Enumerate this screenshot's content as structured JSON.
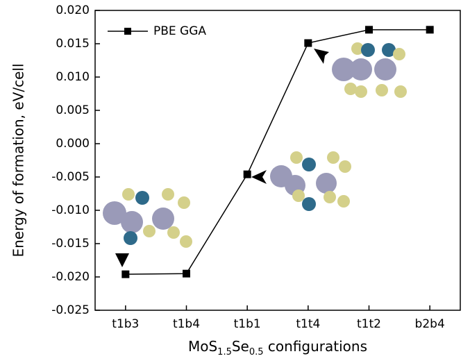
{
  "chart_data": {
    "type": "line",
    "y_label": "Energy of formation, eV/cell",
    "x_label_parts": [
      "MoS",
      "1.5",
      "Se",
      "0.5",
      " configurations"
    ],
    "categories": [
      "t1b3",
      "t1b4",
      "t1b1",
      "t1t4",
      "t1t2",
      "b2b4"
    ],
    "series": [
      {
        "name": "PBE GGA",
        "color": "#000000",
        "values": [
          -0.0196,
          -0.0195,
          -0.0046,
          0.0151,
          0.0171,
          0.0171
        ]
      }
    ],
    "ylim": [
      -0.025,
      0.02
    ],
    "yticks": [
      {
        "value": -0.025,
        "label": "-0.025"
      },
      {
        "value": -0.02,
        "label": "-0.020"
      },
      {
        "value": -0.015,
        "label": "-0.015"
      },
      {
        "value": -0.01,
        "label": "-0.010"
      },
      {
        "value": -0.005,
        "label": "-0.005"
      },
      {
        "value": 0,
        "label": "0.000"
      },
      {
        "value": 0.005,
        "label": "0.005"
      },
      {
        "value": 0.01,
        "label": "0.010"
      },
      {
        "value": 0.015,
        "label": "0.015"
      },
      {
        "value": 0.02,
        "label": "0.020"
      }
    ],
    "legend": "upper-left"
  }
}
